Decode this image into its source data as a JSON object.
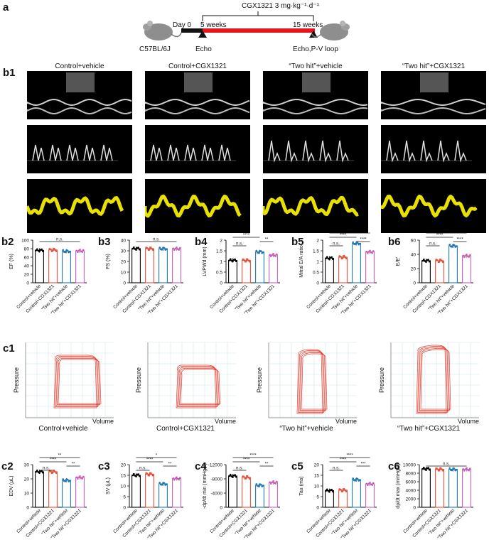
{
  "panel_a": {
    "label": "a",
    "dose": "CGX1321 3 mg·kg⁻¹·d⁻¹",
    "day0": "Day 0",
    "week5": "5 weeks",
    "week15": "15 weeks",
    "strain": "C57BL/6J",
    "echo": "Echo",
    "echo_pv": "Echo,P-V loop"
  },
  "panel_b1": {
    "label": "b1",
    "columns": [
      "Control+vehicle",
      "Control+CGX1321",
      "“Two hit”+vehicle",
      "“Two hit”+CGX1321"
    ]
  },
  "xcats": [
    "Control+vehicle",
    "Control+CGX1321",
    "“Two hit”+vehicle",
    "“Two hit”+CGX1321"
  ],
  "colors": [
    "#000000",
    "#e8503a",
    "#1f78b4",
    "#c85fb8"
  ],
  "panel_c1": {
    "label": "c1",
    "ylabel": "Pressure",
    "xlabel": "Volume",
    "captions": [
      "Control+vehicle",
      "Control+CGX1321",
      "“Two hit”+vehicle",
      "“Two hit”+CGX1321"
    ]
  },
  "chart_data": [
    {
      "label": "b2",
      "type": "bar",
      "ylabel": "EF (%)",
      "ylim": [
        0,
        100
      ],
      "yticks": [
        0,
        20,
        40,
        60,
        80,
        100
      ],
      "values": [
        76,
        77,
        74,
        75
      ],
      "sig": [
        {
          "a": 0,
          "b": 3,
          "t": "n.s."
        }
      ]
    },
    {
      "label": "b3",
      "type": "bar",
      "ylabel": "FS (%)",
      "ylim": [
        0,
        40
      ],
      "yticks": [
        0,
        10,
        20,
        30,
        40
      ],
      "values": [
        32,
        32,
        32,
        32
      ],
      "sig": [
        {
          "a": 0,
          "b": 3,
          "t": "n.s."
        }
      ]
    },
    {
      "label": "b4",
      "type": "bar",
      "ylabel": "LVPWd (mm)",
      "ylim": [
        0,
        2.0
      ],
      "yticks": [
        0,
        0.5,
        1.0,
        1.5,
        2.0
      ],
      "values": [
        1.05,
        1.05,
        1.45,
        1.3
      ],
      "sig": [
        {
          "a": 0,
          "b": 1,
          "t": "n.s."
        },
        {
          "a": 0,
          "b": 2,
          "t": "****"
        },
        {
          "a": 2,
          "b": 3,
          "t": "**"
        }
      ]
    },
    {
      "label": "b5",
      "type": "bar",
      "ylabel": "Mitral E/A ratio",
      "ylim": [
        0,
        2.0
      ],
      "yticks": [
        0,
        0.5,
        1.0,
        1.5,
        2.0
      ],
      "values": [
        1.15,
        1.2,
        1.85,
        1.45
      ],
      "sig": [
        {
          "a": 0,
          "b": 1,
          "t": "n.s."
        },
        {
          "a": 0,
          "b": 2,
          "t": "****"
        },
        {
          "a": 0,
          "b": 3,
          "t": "****"
        },
        {
          "a": 2,
          "b": 3,
          "t": "****"
        }
      ]
    },
    {
      "label": "b6",
      "type": "bar",
      "ylabel": "E/E'",
      "ylim": [
        0,
        60
      ],
      "yticks": [
        0,
        20,
        40,
        60
      ],
      "values": [
        31,
        31,
        52,
        38
      ],
      "sig": [
        {
          "a": 0,
          "b": 1,
          "t": "n.s."
        },
        {
          "a": 0,
          "b": 2,
          "t": "****"
        },
        {
          "a": 0,
          "b": 3,
          "t": "****"
        },
        {
          "a": 2,
          "b": 3,
          "t": "****"
        }
      ]
    },
    {
      "label": "c2",
      "type": "bar",
      "ylabel": "EDV (μL)",
      "ylim": [
        0,
        30
      ],
      "yticks": [
        0,
        10,
        20,
        30
      ],
      "values": [
        25,
        25,
        19,
        21
      ],
      "sig": [
        {
          "a": 0,
          "b": 1,
          "t": "n.s."
        },
        {
          "a": 0,
          "b": 2,
          "t": "****"
        },
        {
          "a": 0,
          "b": 3,
          "t": "**"
        },
        {
          "a": 2,
          "b": 3,
          "t": "**"
        }
      ]
    },
    {
      "label": "c3",
      "type": "bar",
      "ylabel": "SV (μL)",
      "ylim": [
        0,
        20
      ],
      "yticks": [
        0,
        5,
        10,
        15,
        20
      ],
      "values": [
        15,
        15.5,
        11,
        13.5
      ],
      "sig": [
        {
          "a": 0,
          "b": 1,
          "t": "n.s."
        },
        {
          "a": 0,
          "b": 2,
          "t": "****"
        },
        {
          "a": 0,
          "b": 3,
          "t": "*"
        },
        {
          "a": 2,
          "b": 3,
          "t": "**"
        }
      ]
    },
    {
      "label": "c4",
      "type": "bar",
      "ylabel": "-dp/dt min (mmHg/s)",
      "ylim": [
        0,
        -12000
      ],
      "yticks": [
        0,
        -4000,
        -8000,
        -12000
      ],
      "values": [
        -8800,
        -8400,
        -6200,
        -7000
      ],
      "sig": [
        {
          "a": 0,
          "b": 1,
          "t": "n.s."
        },
        {
          "a": 0,
          "b": 2,
          "t": "****"
        },
        {
          "a": 0,
          "b": 3,
          "t": "****"
        },
        {
          "a": 2,
          "b": 3,
          "t": "**"
        }
      ]
    },
    {
      "label": "c5",
      "type": "bar",
      "ylabel": "Tau (ms)",
      "ylim": [
        0,
        20
      ],
      "yticks": [
        0,
        5,
        10,
        15,
        20
      ],
      "values": [
        7.8,
        8,
        13,
        11
      ],
      "sig": [
        {
          "a": 0,
          "b": 1,
          "t": "n.s."
        },
        {
          "a": 0,
          "b": 2,
          "t": "****"
        },
        {
          "a": 0,
          "b": 3,
          "t": "****"
        },
        {
          "a": 2,
          "b": 3,
          "t": "***"
        }
      ]
    },
    {
      "label": "c6",
      "type": "bar",
      "ylabel": "dp/dt max (mmHg/s)",
      "ylim": [
        0,
        10000
      ],
      "yticks": [
        0,
        2000,
        4000,
        6000,
        8000,
        10000
      ],
      "values": [
        9000,
        8900,
        8900,
        8900
      ],
      "sig": [
        {
          "a": 0,
          "b": 3,
          "t": "n.s."
        }
      ]
    }
  ]
}
